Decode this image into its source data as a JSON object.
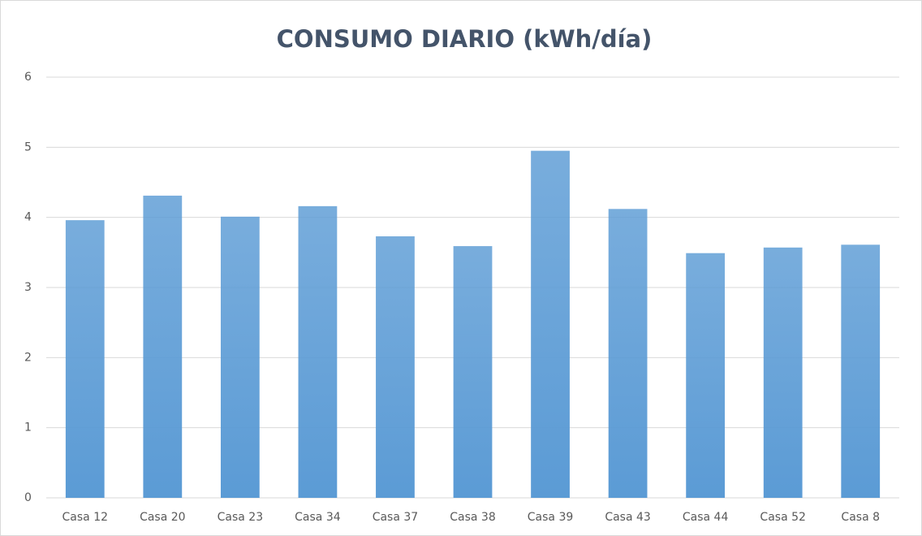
{
  "chart_data": {
    "type": "bar",
    "title": "CONSUMO DIARIO (kWh/día)",
    "categories": [
      "Casa 12",
      "Casa 20",
      "Casa 23",
      "Casa 34",
      "Casa 37",
      "Casa 38",
      "Casa 39",
      "Casa 43",
      "Casa 44",
      "Casa 52",
      "Casa 8"
    ],
    "values": [
      3.96,
      4.31,
      4.01,
      4.16,
      3.73,
      3.59,
      4.95,
      4.12,
      3.49,
      3.57,
      3.61
    ],
    "color": "#5b9bd5",
    "ylim": [
      0,
      6
    ],
    "yticks": [
      0,
      1,
      2,
      3,
      4,
      5,
      6
    ],
    "grid": true
  }
}
